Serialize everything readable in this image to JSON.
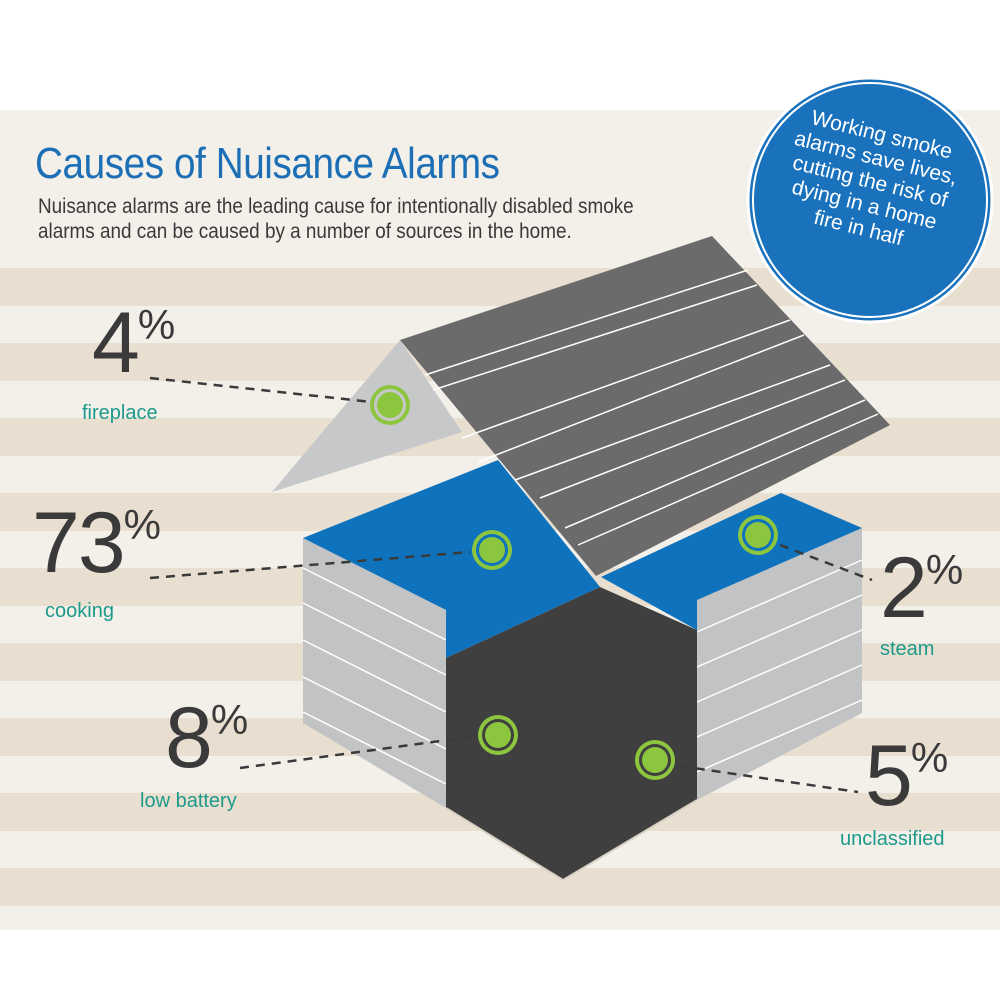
{
  "title": "Causes of Nuisance Alarms",
  "subtitle": "Nuisance alarms are the leading cause for intentionally disabled smoke alarms and can be caused by a number of sources in the home.",
  "callout": "Working smoke alarms save lives, cutting the risk of dying in a home fire in half",
  "causes": [
    {
      "value": "4",
      "unit": "%",
      "label": "fireplace"
    },
    {
      "value": "73",
      "unit": "%",
      "label": "cooking"
    },
    {
      "value": "8",
      "unit": "%",
      "label": "low battery"
    },
    {
      "value": "2",
      "unit": "%",
      "label": "steam"
    },
    {
      "value": "5",
      "unit": "%",
      "label": "unclassified"
    }
  ],
  "colors": {
    "title_blue": "#1c6fb4",
    "label_teal": "#1d9a8c",
    "roof_dark": "#6b6b6b",
    "wall_gray": "#c2c3c5",
    "floor_blue": "#0e72bd",
    "front_dark": "#3f3f3f",
    "marker_green": "#8cc63f",
    "stripe_tan": "#e9dfd0",
    "stripe_light": "#f3efe9"
  }
}
